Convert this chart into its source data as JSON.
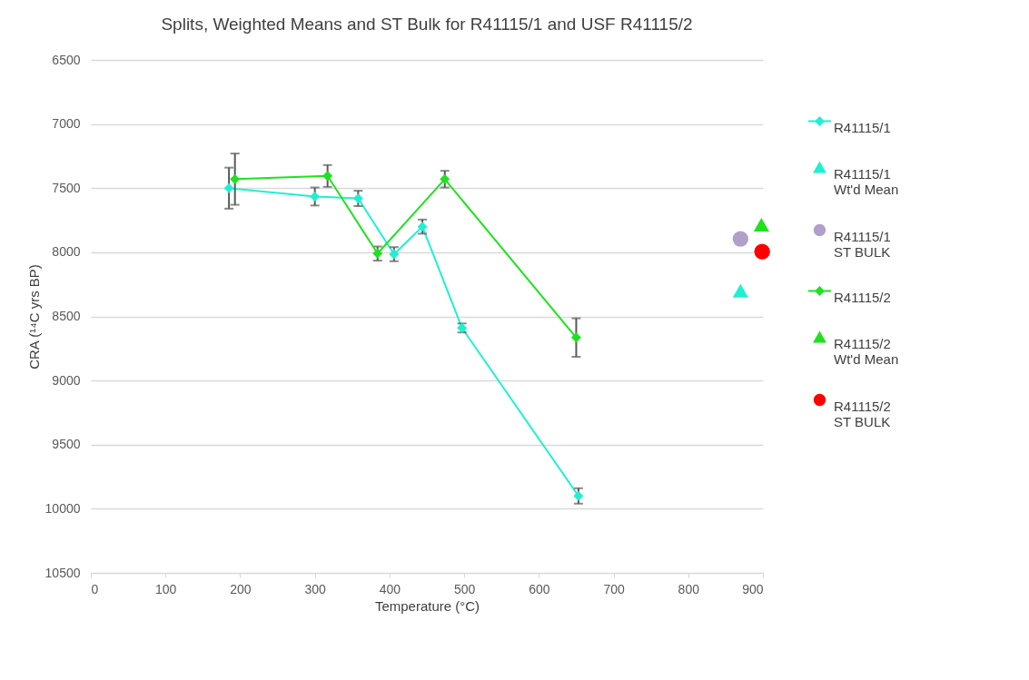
{
  "chart_data": {
    "type": "line",
    "title": "Splits, Weighted Means and ST Bulk for R41115/1 and USF R41115/2",
    "xlabel": "Temperature (°C)",
    "ylabel": "CRA (¹⁴C yrs BP)",
    "xlim": [
      0,
      900
    ],
    "xticks": [
      0,
      100,
      200,
      300,
      400,
      500,
      600,
      700,
      800,
      900
    ],
    "ylim": [
      10500,
      6500
    ],
    "yticks": [
      6500,
      7000,
      7500,
      8000,
      8500,
      9000,
      9500,
      10000,
      10500
    ],
    "grid": "y",
    "legend": "right",
    "series": [
      {
        "name": "R41115/1",
        "type": "line",
        "marker": "diamond",
        "color": "#1ff0d2",
        "x": [
          185,
          300,
          358,
          406,
          444,
          497,
          653
        ],
        "values": [
          7500,
          7565,
          7580,
          8015,
          7800,
          8590,
          9900
        ],
        "errors": [
          160,
          70,
          60,
          55,
          55,
          35,
          60
        ]
      },
      {
        "name": "R41115/1 Wt'd Mean",
        "type": "scatter",
        "marker": "triangle",
        "color": "#1ff0d2",
        "x": [
          870
        ],
        "values": [
          8300
        ]
      },
      {
        "name": "R41115/1 ST BULK",
        "type": "scatter",
        "marker": "circle",
        "color": "#b1a0c7",
        "x": [
          870
        ],
        "values": [
          7895
        ]
      },
      {
        "name": "R41115/2",
        "type": "line",
        "marker": "diamond",
        "color": "#1ee21e",
        "x": [
          193,
          317,
          384,
          474,
          650
        ],
        "values": [
          7430,
          7405,
          8010,
          7430,
          8665
        ],
        "errors": [
          200,
          85,
          55,
          65,
          150
        ]
      },
      {
        "name": "R41115/2 Wt'd Mean",
        "type": "scatter",
        "marker": "triangle",
        "color": "#1ee21e",
        "x": [
          898
        ],
        "values": [
          7785
        ]
      },
      {
        "name": "R41115/2 ST BULK",
        "type": "scatter",
        "marker": "circle",
        "color": "#ff0000",
        "x": [
          899
        ],
        "values": [
          7995
        ]
      }
    ]
  }
}
